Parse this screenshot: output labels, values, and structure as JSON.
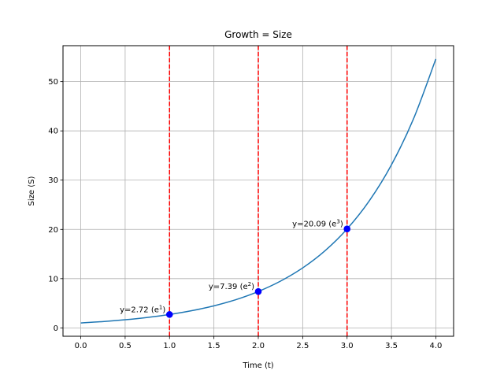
{
  "chart_data": {
    "type": "line",
    "title": "Growth = Size",
    "xlabel": "Time (t)",
    "ylabel": "Size (S)",
    "xlim": [
      -0.2,
      4.2
    ],
    "ylim": [
      -1.7,
      57.3
    ],
    "grid": true,
    "x_ticks": [
      "0.0",
      "0.5",
      "1.0",
      "1.5",
      "2.0",
      "2.5",
      "3.0",
      "3.5",
      "4.0"
    ],
    "y_ticks": [
      "0",
      "10",
      "20",
      "30",
      "40",
      "50"
    ],
    "series": [
      {
        "color": "#1f77b4",
        "x": [
          0,
          0.25,
          0.5,
          0.75,
          1.0,
          1.25,
          1.5,
          1.75,
          2.0,
          2.25,
          2.5,
          2.75,
          3.0,
          3.25,
          3.5,
          3.75,
          4.0
        ],
        "y": [
          1.0,
          1.28,
          1.65,
          2.12,
          2.72,
          3.49,
          4.48,
          5.75,
          7.39,
          9.49,
          12.18,
          15.64,
          20.09,
          25.79,
          33.12,
          42.52,
          54.6
        ]
      }
    ],
    "vlines": {
      "x": [
        1,
        2,
        3
      ],
      "color": "#ff0000",
      "style": "dashed"
    },
    "markers": {
      "color": "#0000ff",
      "points": [
        {
          "x": 1,
          "y": 2.72
        },
        {
          "x": 2,
          "y": 7.39
        },
        {
          "x": 3,
          "y": 20.09
        }
      ]
    },
    "annotations": [
      {
        "x": 1,
        "y": 2.72,
        "text": "y=2.72 (e",
        "sup": "1",
        "suffix": ")"
      },
      {
        "x": 2,
        "y": 7.39,
        "text": "y=7.39 (e",
        "sup": "2",
        "suffix": ")"
      },
      {
        "x": 3,
        "y": 20.09,
        "text": "y=20.09 (e",
        "sup": "3",
        "suffix": ")"
      }
    ]
  }
}
